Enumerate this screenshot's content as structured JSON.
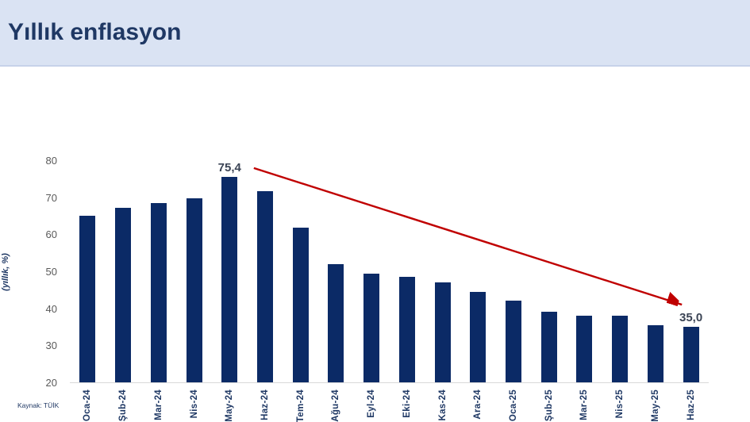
{
  "header": {
    "title": "Yıllık enflasyon"
  },
  "footer": {
    "source": "Kaynak: TÜİK"
  },
  "chart_data": {
    "type": "bar",
    "title": "Yıllık enflasyon",
    "xlabel": "",
    "ylabel": "(yıllık, %)",
    "categories": [
      "Oca-24",
      "Şub-24",
      "Mar-24",
      "Nis-24",
      "May-24",
      "Haz-24",
      "Tem-24",
      "Ağu-24",
      "Eyl-24",
      "Eki-24",
      "Kas-24",
      "Ara-24",
      "Oca-25",
      "Şub-25",
      "Mar-25",
      "Nis-25",
      "May-25",
      "Haz-25"
    ],
    "values": [
      64.9,
      67.1,
      68.5,
      69.8,
      75.4,
      71.6,
      61.8,
      52.0,
      49.4,
      48.6,
      47.1,
      44.4,
      42.1,
      39.1,
      38.1,
      37.9,
      35.4,
      35.0
    ],
    "data_labels": [
      "",
      "",
      "",
      "",
      "75,4",
      "",
      "",
      "",
      "",
      "",
      "",
      "",
      "",
      "",
      "",
      "",
      "",
      "35,0"
    ],
    "ylim": [
      20,
      80
    ],
    "yticks": [
      20,
      30,
      40,
      50,
      60,
      70,
      80
    ],
    "grid": false,
    "legend": "none",
    "bar_color": "#0b2a66",
    "axis_tick_color": "#595959",
    "data_label_color": "#3b4455",
    "category_label_color": "#1f3864",
    "trend_arrow": {
      "color": "#c00000",
      "x1_pct": 28.8,
      "y1_value": 78.1,
      "x2_pct": 95.8,
      "y2_value": 41.2
    }
  }
}
